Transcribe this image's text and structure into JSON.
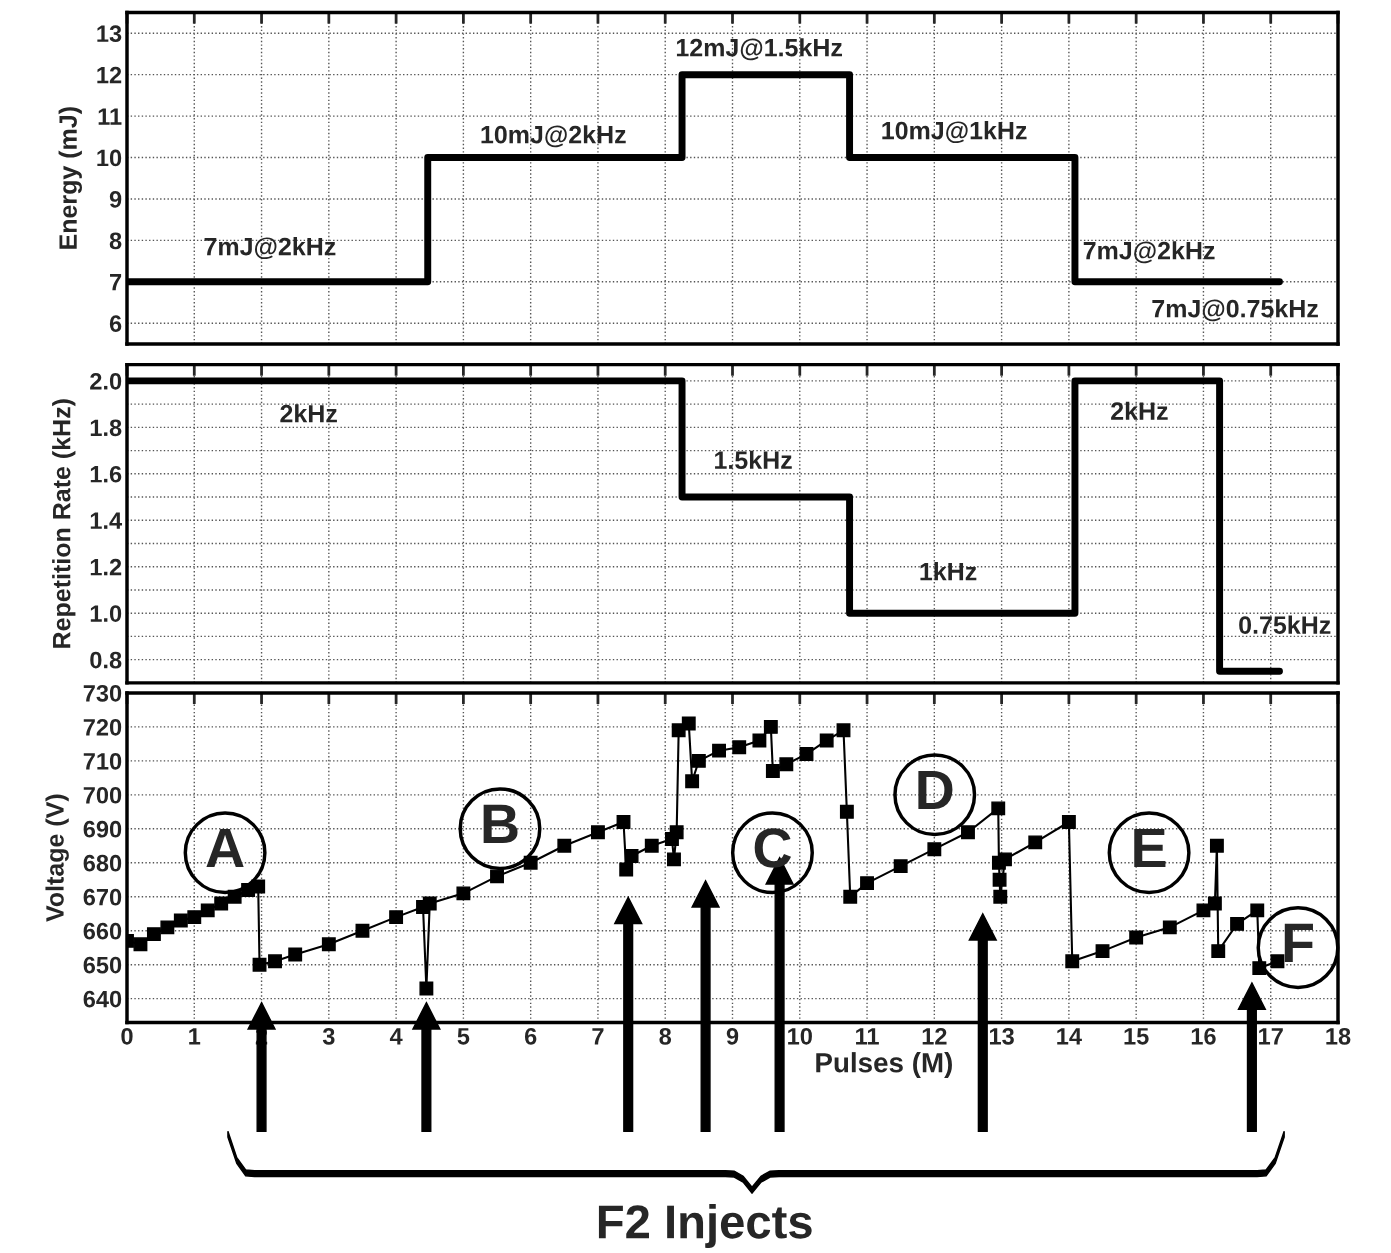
{
  "chart_data": [
    {
      "type": "step",
      "x": [
        0,
        4.47,
        8.25,
        10.74,
        14.09,
        17.13
      ],
      "values": [
        7,
        10,
        12,
        10,
        7,
        7
      ],
      "color": "#000000",
      "ylabel": "Energy (mJ)",
      "xlim": [
        0,
        18
      ],
      "xticks": [
        0,
        1,
        2,
        3,
        4,
        5,
        6,
        7,
        8,
        9,
        10,
        11,
        12,
        13,
        14,
        15,
        16,
        17,
        18
      ],
      "ylim": [
        5.5,
        13.5
      ],
      "yticks": [
        6,
        7,
        8,
        9,
        10,
        11,
        12,
        13
      ],
      "grid": true,
      "tick_labels": "y",
      "annotations": [
        "7mJ@2kHz",
        "10mJ@2kHz",
        "12mJ@1.5kHz",
        "10mJ@1kHz",
        "7mJ@2kHz",
        "7mJ@0.75kHz"
      ]
    },
    {
      "type": "step",
      "x": [
        0,
        8.25,
        10.74,
        14.09,
        16.24,
        17.13
      ],
      "values": [
        2.0,
        1.5,
        1.0,
        2.0,
        0.75,
        0.75
      ],
      "color": "#000000",
      "ylabel": "Repetition Rate (kHz)",
      "xlim": [
        0,
        18
      ],
      "xticks": [
        0,
        1,
        2,
        3,
        4,
        5,
        6,
        7,
        8,
        9,
        10,
        11,
        12,
        13,
        14,
        15,
        16,
        17,
        18
      ],
      "ylim": [
        0.7,
        2.07
      ],
      "yticks": [
        {
          "value": 0.8,
          "label": "0.8"
        },
        {
          "value": 0.9,
          "label": null
        },
        {
          "value": 1.0,
          "label": "1.0"
        },
        {
          "value": 1.1,
          "label": null
        },
        {
          "value": 1.2,
          "label": "1.2"
        },
        {
          "value": 1.3,
          "label": null
        },
        {
          "value": 1.4,
          "label": "1.4"
        },
        {
          "value": 1.5,
          "label": null
        },
        {
          "value": 1.6,
          "label": "1.6"
        },
        {
          "value": 1.7,
          "label": null
        },
        {
          "value": 1.8,
          "label": "1.8"
        },
        {
          "value": 1.9,
          "label": null
        },
        {
          "value": 2.0,
          "label": "2.0"
        }
      ],
      "grid": true,
      "tick_labels": "y",
      "annotations": [
        "2kHz",
        "1.5kHz",
        "1kHz",
        "2kHz",
        "0.75kHz"
      ]
    },
    {
      "type": "line",
      "marker": "square",
      "color": "#000000",
      "x": [
        0,
        0.2,
        0.4,
        0.6,
        0.8,
        1.0,
        1.2,
        1.4,
        1.6,
        1.8,
        1.95,
        1.97,
        2.2,
        2.5,
        3.0,
        3.5,
        4.0,
        4.4,
        4.45,
        4.5,
        5.0,
        5.5,
        6.0,
        6.5,
        7.0,
        7.38,
        7.42,
        7.5,
        7.8,
        8.1,
        8.13,
        8.17,
        8.2,
        8.35,
        8.4,
        8.5,
        8.8,
        9.1,
        9.4,
        9.57,
        9.6,
        9.8,
        10.1,
        10.4,
        10.65,
        10.7,
        10.75,
        11.0,
        11.5,
        12.0,
        12.5,
        12.95,
        12.96,
        12.97,
        12.98,
        13.05,
        13.5,
        14.0,
        14.05,
        14.5,
        15.0,
        15.5,
        16.0,
        16.17,
        16.2,
        16.22,
        16.5,
        16.8,
        16.83,
        17.1
      ],
      "values": [
        657,
        656,
        659,
        661,
        663,
        664,
        666,
        668,
        670,
        672,
        673,
        650,
        651,
        653,
        656,
        660,
        664,
        667,
        643,
        668,
        671,
        676,
        680,
        685,
        689,
        692,
        678,
        682,
        685,
        687,
        681,
        689,
        719,
        721,
        704,
        710,
        713,
        714,
        716,
        720,
        707,
        709,
        712,
        716,
        719,
        695,
        670,
        674,
        679,
        684,
        689,
        696,
        680,
        675,
        670,
        681,
        686,
        692,
        651,
        654,
        658,
        661,
        666,
        668,
        685,
        654,
        662,
        666,
        649,
        651
      ],
      "xlabel": "Pulses (M)",
      "ylabel": "Voltage (V)",
      "xlim": [
        0,
        18
      ],
      "xticks": [
        0,
        1,
        2,
        3,
        4,
        5,
        6,
        7,
        8,
        9,
        10,
        11,
        12,
        13,
        14,
        15,
        16,
        17,
        18
      ],
      "ylim": [
        633,
        730
      ],
      "yticks": [
        640,
        650,
        660,
        670,
        680,
        690,
        700,
        710,
        720,
        730
      ],
      "grid": true,
      "annotations": [
        "A",
        "B",
        "C",
        "D",
        "E",
        "F",
        "F2 Injects"
      ]
    }
  ]
}
